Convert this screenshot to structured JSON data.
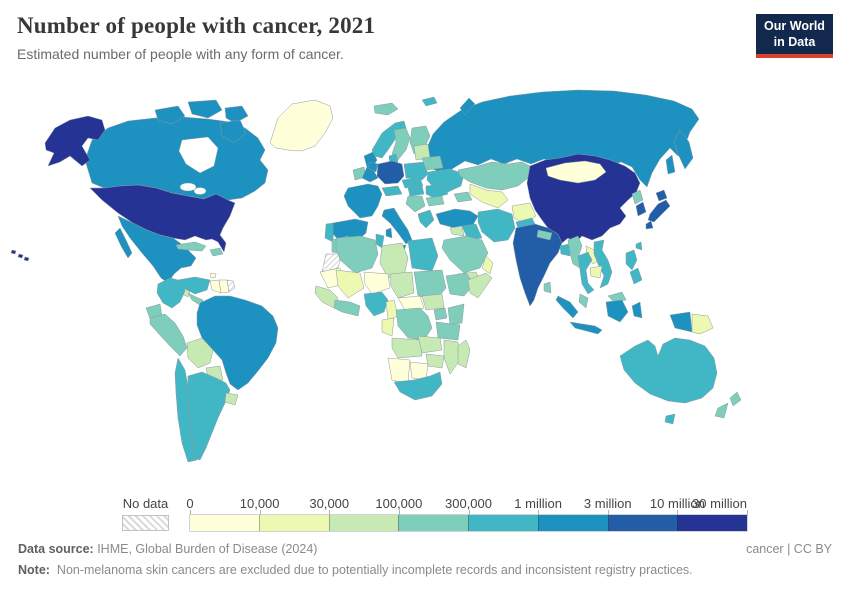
{
  "header": {
    "title": "Number of people with cancer, 2021",
    "subtitle": "Estimated number of people with any form of cancer.",
    "logo": {
      "line1": "Our World",
      "line2": "in Data",
      "bg_color": "#12294d",
      "accent_color": "#d7432d"
    }
  },
  "legend": {
    "no_data_label": "No data",
    "tick_labels": [
      "0",
      "10,000",
      "30,000",
      "100,000",
      "300,000",
      "1 million",
      "3 million",
      "10 million",
      "30 million"
    ],
    "bin_colors": [
      "#ffffd9",
      "#edf8b1",
      "#c7e9b4",
      "#7fcdbb",
      "#41b6c4",
      "#1d91c0",
      "#225ea8",
      "#253494"
    ]
  },
  "footer": {
    "datasource_label": "Data source:",
    "datasource_value": " IHME, Global Burden of Disease (2024)",
    "license": "cancer | CC BY",
    "note_label": "Note:",
    "note_value": " Non-melanoma skin cancers are excluded due to potentially incomplete records and inconsistent registry practices."
  },
  "chart_data": {
    "type": "choropleth_map",
    "title": "Number of people with cancer, 2021",
    "subtitle": "Estimated number of people with any form of cancer.",
    "year": "2021",
    "legend_bins": [
      {
        "range": "0 – 10,000",
        "color": "#ffffd9"
      },
      {
        "range": "10,000 – 30,000",
        "color": "#edf8b1"
      },
      {
        "range": "30,000 – 100,000",
        "color": "#c7e9b4"
      },
      {
        "range": "100,000 – 300,000",
        "color": "#7fcdbb"
      },
      {
        "range": "300,000 – 1 million",
        "color": "#41b6c4"
      },
      {
        "range": "1 million – 3 million",
        "color": "#1d91c0"
      },
      {
        "range": "3 million – 10 million",
        "color": "#225ea8"
      },
      {
        "range": "10 million – 30 million",
        "color": "#253494"
      }
    ],
    "countries": {
      "United States": 7,
      "China": 7,
      "Germany": 6,
      "India": 6,
      "Japan": 6,
      "South Korea": 6,
      "Canada": 5,
      "Russia": 5,
      "Brazil": 5,
      "Mexico": 5,
      "United Kingdom": 5,
      "France": 5,
      "Spain": 5,
      "Italy": 5,
      "Netherlands": 5,
      "Turkey": 5,
      "Indonesia": 5,
      "Nigeria": 4,
      "Egypt": 4,
      "South Africa": 4,
      "Tunisia": 4,
      "Iraq": 4,
      "Iran": 4,
      "Pakistan": 4,
      "Ukraine": 4,
      "Poland": 4,
      "Norway": 4,
      "Denmark": 4,
      "Czechia": 4,
      "Austria": 4,
      "Hungary": 4,
      "Romania": 4,
      "Greece": 4,
      "Portugal": 4,
      "Chile": 4,
      "Argentina": 4,
      "Colombia": 4,
      "Venezuela": 4,
      "Australia": 4,
      "Thailand": 4,
      "Vietnam": 4,
      "Philippines": 4,
      "Bangladesh": 4,
      "Taiwan": 4,
      "Morocco": 3,
      "Algeria": 3,
      "Sudan": 3,
      "Ethiopia": 3,
      "Kenya": 3,
      "Tanzania": 3,
      "Uganda": 3,
      "DR Congo": 3,
      "Ghana": 3,
      "Saudi Arabia": 3,
      "Kazakhstan": 3,
      "Azerbaijan": 3,
      "Sweden": 3,
      "Finland": 3,
      "Iceland": 3,
      "Ireland": 3,
      "Belarus": 3,
      "Serbia": 3,
      "Bulgaria": 3,
      "Ecuador": 3,
      "Peru": 3,
      "Cuba": 3,
      "Dominican Republic": 3,
      "Panama": 3,
      "New Zealand": 3,
      "Malaysia": 3,
      "Myanmar": 3,
      "Nepal": 3,
      "Sri Lanka": 3,
      "North Korea": 3,
      "Libya": 2,
      "Chad": 2,
      "South Sudan": 2,
      "Somalia": 2,
      "Yemen": 2,
      "Syria": 2,
      "Senegal": 2,
      "Angola": 2,
      "Zambia": 2,
      "Mozambique": 2,
      "Zimbabwe": 2,
      "Madagascar": 2,
      "Bolivia": 2,
      "Paraguay": 2,
      "Uruguay": 2,
      "Baltic states": 2,
      "Guatemala": 2,
      "Mali": 1,
      "Cameroon": 1,
      "Congo": 1,
      "Laos": 1,
      "Cambodia": 1,
      "Papua New Guinea": 1,
      "Afghanistan": 1,
      "Uzbekistan": 1,
      "Oman": 1,
      "Greenland": 0,
      "Mongolia": 0,
      "Central African Republic": 0,
      "Niger": 0,
      "Mauritania": 0,
      "Namibia": 0,
      "Botswana": 0,
      "Guyana": 0,
      "Suriname": 0,
      "Trinidad and Tobago": 0,
      "Western Sahara": "no_data",
      "French Guiana": "no_data"
    }
  }
}
